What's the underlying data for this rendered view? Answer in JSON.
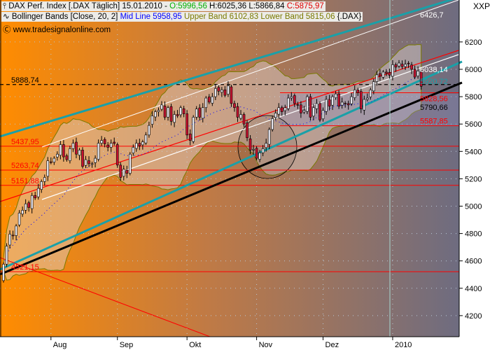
{
  "header": {
    "line1_prefix": "DAX Perf. Index [.DAX  Täglich] 15.01.2010 - ",
    "open": "O:5996,56",
    "high": "H:6025,36",
    "low": "L:5866,84",
    "close": "C:5875,97",
    "line2_prefix": "Bollinger Bands [Close, 20, 2]",
    "mid": "Mid Line 5958,95",
    "upper_lower": "Upper Band 6102,83 Lower Band 5815,06",
    "suffix": "{.DAX}",
    "copyright": "www.tradesignalonline.com"
  },
  "colors": {
    "up": "#e6e6ee",
    "down": "#c8102e",
    "open": "#00b000",
    "close": "#e00000",
    "mid": "#0000ff",
    "bands": "#7a7a00",
    "teal": "#1aa0a8",
    "red_line": "#ff0000"
  },
  "chart_data": {
    "type": "candlestick",
    "symbol": "XXP",
    "ylim": [
      4150,
      6500
    ],
    "yticks": [
      4200,
      4400,
      4600,
      4800,
      5000,
      5200,
      5400,
      5600,
      5800,
      6000,
      6200
    ],
    "ytick_labels": [
      "4200",
      "4400",
      "4600",
      "4800",
      "5000",
      "5200",
      "5400",
      "5600",
      "5800",
      "6000",
      "6200"
    ],
    "month_labels": [
      {
        "label": "Aug",
        "index": 15
      },
      {
        "label": "Sep",
        "index": 36
      },
      {
        "label": "Okt",
        "index": 58
      },
      {
        "label": "Nov",
        "index": 80
      },
      {
        "label": "Dez",
        "index": 101
      },
      {
        "label": "2010",
        "index": 123
      }
    ],
    "closes": [
      4576,
      4708,
      4796,
      4785,
      4855,
      4950,
      4970,
      5017,
      4990,
      5078,
      5060,
      5130,
      5180,
      5210,
      5332,
      5321,
      5350,
      5380,
      5450,
      5360,
      5340,
      5420,
      5460,
      5380,
      5410,
      5290,
      5340,
      5310,
      5310,
      5350,
      5460,
      5480,
      5455,
      5430,
      5460,
      5458,
      5300,
      5210,
      5270,
      5240,
      5380,
      5430,
      5460,
      5440,
      5470,
      5520,
      5590,
      5660,
      5690,
      5700,
      5740,
      5650,
      5720,
      5620,
      5670,
      5660,
      5720,
      5675,
      5520,
      5480,
      5650,
      5710,
      5650,
      5720,
      5790,
      5760,
      5800,
      5860,
      5840,
      5850,
      5810,
      5880,
      5750,
      5720,
      5650,
      5670,
      5600,
      5500,
      5410,
      5415,
      5350,
      5390,
      5420,
      5460,
      5560,
      5640,
      5680,
      5720,
      5690,
      5720,
      5790,
      5800,
      5750,
      5740,
      5680,
      5700,
      5800,
      5650,
      5720,
      5750,
      5630,
      5700,
      5780,
      5730,
      5800,
      5820,
      5730,
      5760,
      5750,
      5740,
      5800,
      5850,
      5830,
      5710,
      5780,
      5790,
      5850,
      5910,
      5960,
      5950,
      5980,
      5970,
      5957,
      6034,
      6016,
      6046,
      6020,
      6037,
      6040,
      6000,
      5943,
      5988,
      5876
    ],
    "levels": [
      {
        "label": "5888,74",
        "value": 5888.74,
        "color": "#000000",
        "style": "dashed"
      },
      {
        "label": "5437,95",
        "value": 5437.95,
        "color": "#ff0000"
      },
      {
        "label": "5263,74",
        "value": 5263.74,
        "color": "#ff0000"
      },
      {
        "label": "5151,88",
        "value": 5151.88,
        "color": "#ff0000"
      },
      {
        "label": "4521,15",
        "value": 4521.15,
        "color": "#ff0000"
      },
      {
        "label": "5828,56",
        "value": 5828.56,
        "color": "#ff0000"
      },
      {
        "label": "5587,85",
        "value": 5587.85,
        "color": "#ff0000"
      }
    ],
    "trend_labels": [
      {
        "label": "6426,7",
        "color": "#ffffff"
      },
      {
        "label": "6038,14",
        "color": "#ffffff"
      },
      {
        "label": "5920,72",
        "color": "#1aa0a8"
      },
      {
        "label": "5790,66",
        "color": "#000000"
      }
    ]
  }
}
